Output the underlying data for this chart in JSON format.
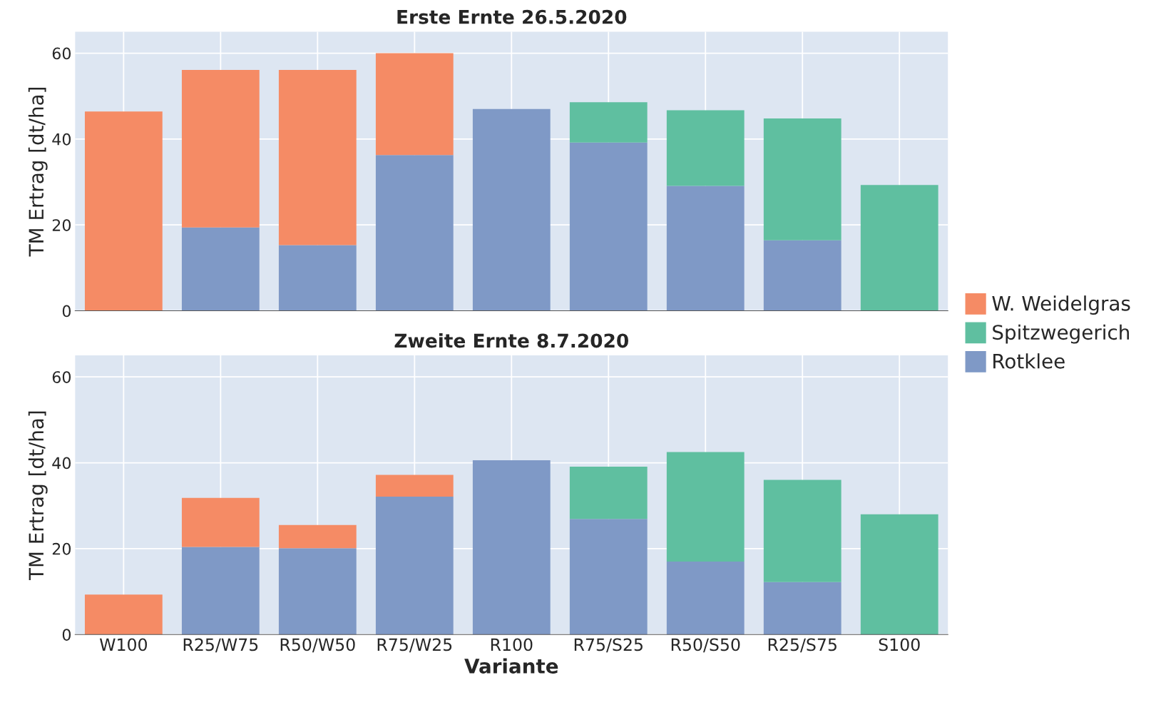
{
  "chart_data": [
    {
      "type": "bar",
      "title": "Erste Ernte 26.5.2020",
      "ylabel": "TM Ertrag [dt/ha]",
      "stacked": true,
      "categories": [
        null,
        null,
        null,
        null,
        null,
        null,
        null,
        null,
        null
      ],
      "series": [
        {
          "name": "Rotklee",
          "color": "#7f99c6",
          "values": [
            null,
            19.4,
            15.3,
            36.3,
            47.0,
            39.2,
            29.1,
            16.4,
            null
          ]
        },
        {
          "name": "Spitzwegerich",
          "color": "#5fbfa0",
          "values": [
            null,
            null,
            null,
            null,
            null,
            9.4,
            17.6,
            28.4,
            29.3
          ]
        },
        {
          "name": "W. Weidelgras",
          "color": "#f58b65",
          "values": [
            46.4,
            36.7,
            40.8,
            23.7,
            null,
            null,
            null,
            null,
            null
          ]
        }
      ],
      "ylim": [
        0,
        65
      ],
      "yticks": [
        0,
        20,
        40,
        60
      ],
      "grid": true,
      "legend": "right",
      "tick_labels": "y"
    },
    {
      "type": "bar",
      "title": "Zweite Ernte 8.7.2020",
      "xlabel": "Variante",
      "ylabel": "TM Ertrag [dt/ha]",
      "stacked": true,
      "categories": [
        "W100",
        "R25/W75",
        "R50/W50",
        "R75/W25",
        "R100",
        "R75/S25",
        "R50/S50",
        "R25/S75",
        "S100"
      ],
      "series": [
        {
          "color": "#7f99c6",
          "values": [
            null,
            20.4,
            20.1,
            32.1,
            40.6,
            26.9,
            17.0,
            12.2,
            null
          ]
        },
        {
          "color": "#5fbfa0",
          "values": [
            null,
            null,
            null,
            null,
            null,
            12.2,
            25.5,
            23.8,
            28.0
          ]
        },
        {
          "color": "#f58b65",
          "values": [
            9.3,
            11.4,
            5.4,
            5.1,
            null,
            null,
            null,
            null,
            null
          ]
        }
      ],
      "ylim": [
        0,
        65
      ],
      "yticks": [
        0,
        20,
        40,
        60
      ],
      "grid": true
    }
  ]
}
